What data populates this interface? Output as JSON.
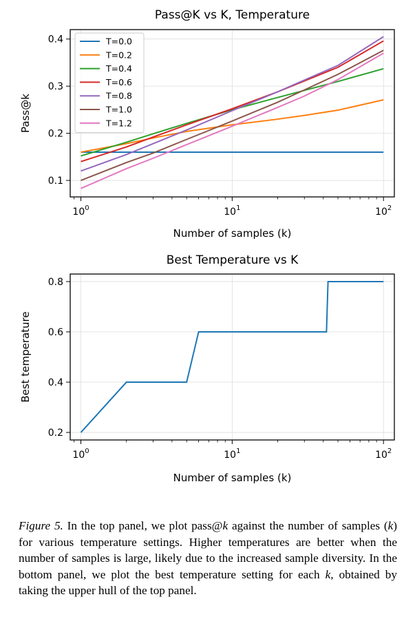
{
  "chart_data": [
    {
      "type": "line",
      "title": "Pass@K vs K, Temperature",
      "xlabel": "Number of samples (k)",
      "ylabel": "Pass@k",
      "xscale": "log",
      "xlim": [
        0.85,
        118
      ],
      "ylim": [
        0.065,
        0.42
      ],
      "xticks": [
        1,
        10,
        100
      ],
      "xtick_bases": [
        "10",
        "10",
        "10"
      ],
      "xtick_exps": [
        "0",
        "1",
        "2"
      ],
      "yticks": [
        0.1,
        0.2,
        0.3,
        0.4
      ],
      "ytick_labels": [
        "0.1",
        "0.2",
        "0.3",
        "0.4"
      ],
      "grid": true,
      "legend_position": "top-left",
      "x": [
        1,
        2,
        3,
        5,
        10,
        20,
        30,
        50,
        100
      ],
      "series": [
        {
          "name": "T=0.0",
          "color": "#1f77b4",
          "values": [
            0.16,
            0.16,
            0.16,
            0.16,
            0.16,
            0.16,
            0.16,
            0.16,
            0.16
          ]
        },
        {
          "name": "T=0.2",
          "color": "#ff7f0e",
          "values": [
            0.16,
            0.178,
            0.19,
            0.204,
            0.218,
            0.23,
            0.238,
            0.249,
            0.271
          ]
        },
        {
          "name": "T=0.4",
          "color": "#2ca02c",
          "values": [
            0.152,
            0.181,
            0.199,
            0.221,
            0.25,
            0.276,
            0.291,
            0.31,
            0.337
          ]
        },
        {
          "name": "T=0.6",
          "color": "#d62728",
          "values": [
            0.14,
            0.171,
            0.192,
            0.218,
            0.252,
            0.288,
            0.311,
            0.34,
            0.396
          ]
        },
        {
          "name": "T=0.8",
          "color": "#9467bd",
          "values": [
            0.12,
            0.155,
            0.178,
            0.207,
            0.248,
            0.288,
            0.313,
            0.344,
            0.405
          ]
        },
        {
          "name": "T=1.0",
          "color": "#8c564b",
          "values": [
            0.1,
            0.138,
            0.158,
            0.187,
            0.226,
            0.266,
            0.292,
            0.325,
            0.376
          ]
        },
        {
          "name": "T=1.2",
          "color": "#e377c2",
          "values": [
            0.083,
            0.125,
            0.147,
            0.176,
            0.215,
            0.255,
            0.279,
            0.314,
            0.37
          ]
        }
      ]
    },
    {
      "type": "line",
      "title": "Best Temperature vs K",
      "xlabel": "Number of samples (k)",
      "ylabel": "Best temperature",
      "xscale": "log",
      "xlim": [
        0.85,
        118
      ],
      "ylim": [
        0.17,
        0.83
      ],
      "xticks": [
        1,
        10,
        100
      ],
      "xtick_bases": [
        "10",
        "10",
        "10"
      ],
      "xtick_exps": [
        "0",
        "1",
        "2"
      ],
      "yticks": [
        0.2,
        0.4,
        0.6,
        0.8
      ],
      "ytick_labels": [
        "0.2",
        "0.4",
        "0.6",
        "0.8"
      ],
      "grid": true,
      "x": [
        1,
        2,
        5,
        6,
        42,
        43,
        100
      ],
      "series": [
        {
          "color": "#1f77b4",
          "values": [
            0.2,
            0.4,
            0.4,
            0.6,
            0.6,
            0.8,
            0.8
          ]
        }
      ]
    }
  ],
  "caption": {
    "figure_label": "Figure 5.",
    "p1": " In the top panel, we plot pass@",
    "k1": "k",
    "p2": " against the number of samples (",
    "k2": "k",
    "p3": ") for various temperature settings. Higher temperatures are better when the number of samples is large, likely due to the increased sample diversity. In the bottom panel, we plot the best temperature setting for each ",
    "k3": "k",
    "p4": ", obtained by taking the upper hull of the top panel."
  }
}
